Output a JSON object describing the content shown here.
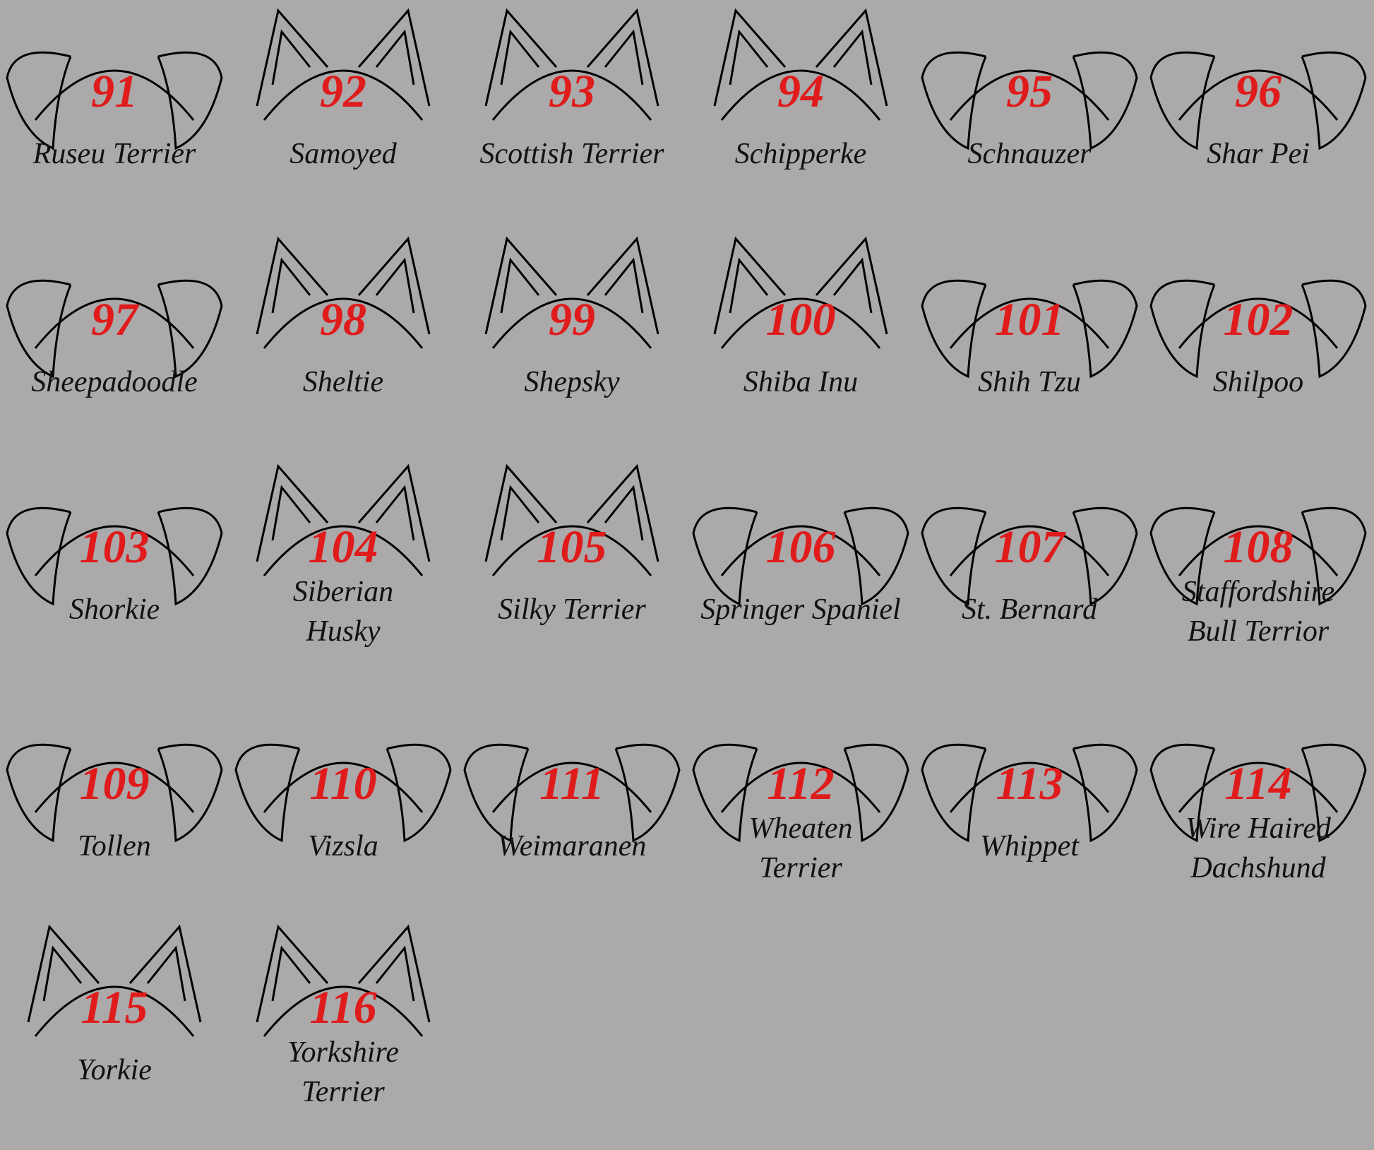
{
  "items": [
    {
      "number": 91,
      "name": [
        "Ruseu Terrier"
      ]
    },
    {
      "number": 92,
      "name": [
        "Samoyed"
      ]
    },
    {
      "number": 93,
      "name": [
        "Scottish Terrier"
      ]
    },
    {
      "number": 94,
      "name": [
        "Schipperke"
      ]
    },
    {
      "number": 95,
      "name": [
        "Schnauzer"
      ]
    },
    {
      "number": 96,
      "name": [
        "Shar Pei"
      ]
    },
    {
      "number": 97,
      "name": [
        "Sheepadoodle"
      ]
    },
    {
      "number": 98,
      "name": [
        "Sheltie"
      ]
    },
    {
      "number": 99,
      "name": [
        "Shepsky"
      ]
    },
    {
      "number": 100,
      "name": [
        "Shiba Inu"
      ]
    },
    {
      "number": 101,
      "name": [
        "Shih Tzu"
      ]
    },
    {
      "number": 102,
      "name": [
        "Shilpoo"
      ]
    },
    {
      "number": 103,
      "name": [
        "Shorkie"
      ]
    },
    {
      "number": 104,
      "name": [
        "Siberian",
        "Husky"
      ]
    },
    {
      "number": 105,
      "name": [
        "Silky Terrier"
      ]
    },
    {
      "number": 106,
      "name": [
        "Springer Spaniel"
      ]
    },
    {
      "number": 107,
      "name": [
        "St. Bernard"
      ]
    },
    {
      "number": 108,
      "name": [
        "Staffordshire",
        "Bull Terrior"
      ]
    },
    {
      "number": 109,
      "name": [
        "Tollen"
      ]
    },
    {
      "number": 110,
      "name": [
        "Vizsla"
      ]
    },
    {
      "number": 111,
      "name": [
        "Weimaranen"
      ]
    },
    {
      "number": 112,
      "name": [
        "Wheaten",
        "Terrier"
      ]
    },
    {
      "number": 113,
      "name": [
        "Whippet"
      ]
    },
    {
      "number": 114,
      "name": [
        "Wire Haired",
        "Dachshund"
      ]
    },
    {
      "number": 115,
      "name": [
        "Yorkie"
      ]
    },
    {
      "number": 116,
      "name": [
        "Yorkshire",
        "Terrier"
      ]
    }
  ]
}
